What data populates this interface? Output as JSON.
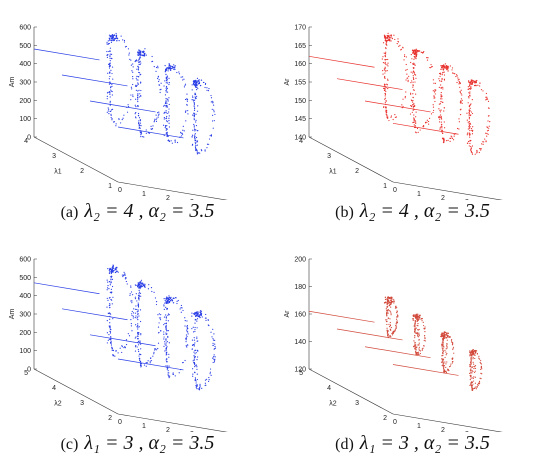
{
  "chart_data": [
    {
      "type": "scatter",
      "label": "(a)",
      "caption": "λ2 = 4 , α2 = 3.5",
      "zlabel": "Am",
      "xlabel": "α1",
      "ylabel": "λ1",
      "zticks": [
        "0",
        "100",
        "200",
        "300",
        "400",
        "500",
        "600"
      ],
      "zlim": [
        0,
        600
      ],
      "xticks": [
        "0",
        "1",
        "2",
        "3",
        "4",
        "5"
      ],
      "xlim": [
        0,
        5
      ],
      "yticks": [
        "1",
        "2",
        "3",
        "4"
      ],
      "ylim": [
        1,
        4
      ],
      "color": "#2a3ee6",
      "series": [
        {
          "y": 4,
          "x": [
            0,
            3.5
          ],
          "value": 480,
          "spread": [
            180,
            600
          ]
        },
        {
          "y": 3,
          "x": [
            0,
            3.5
          ],
          "value": 420,
          "spread": [
            200,
            600
          ]
        },
        {
          "y": 2,
          "x": [
            0,
            3.5
          ],
          "value": 360,
          "spread": [
            230,
            600
          ]
        },
        {
          "y": 1,
          "x": [
            0,
            3.5
          ],
          "value": 300,
          "spread": [
            260,
            600
          ]
        }
      ]
    },
    {
      "type": "scatter",
      "label": "(b)",
      "caption": "λ2 = 4 , α2 = 3.5",
      "zlabel": "Ar",
      "xlabel": "α1",
      "ylabel": "λ1",
      "zticks": [
        "140",
        "145",
        "150",
        "155",
        "160",
        "165",
        "170"
      ],
      "zlim": [
        140,
        170
      ],
      "xticks": [
        "0",
        "1",
        "2",
        "3",
        "4",
        "5"
      ],
      "xlim": [
        0,
        5
      ],
      "yticks": [
        "1",
        "2",
        "3",
        "4"
      ],
      "ylim": [
        1,
        4
      ],
      "color": "#e8322e",
      "series": [
        {
          "y": 4,
          "x": [
            0,
            3.5
          ],
          "value": 162,
          "spread": [
            150,
            170
          ]
        },
        {
          "y": 3,
          "x": [
            0,
            3.5
          ],
          "value": 160,
          "spread": [
            151,
            170
          ]
        },
        {
          "y": 2,
          "x": [
            0,
            3.5
          ],
          "value": 158,
          "spread": [
            152,
            170
          ]
        },
        {
          "y": 1,
          "x": [
            0,
            3.5
          ],
          "value": 156,
          "spread": [
            153,
            170
          ]
        }
      ]
    },
    {
      "type": "scatter",
      "label": "(c)",
      "caption": "λ1 = 3 , α2 = 3.5",
      "zlabel": "Am",
      "xlabel": "α1",
      "ylabel": "λ2",
      "zticks": [
        "0",
        "100",
        "200",
        "300",
        "400",
        "500",
        "600"
      ],
      "zlim": [
        0,
        600
      ],
      "xticks": [
        "0",
        "1",
        "2",
        "3",
        "4",
        "5"
      ],
      "xlim": [
        0,
        5
      ],
      "yticks": [
        "2",
        "3",
        "4",
        "5"
      ],
      "ylim": [
        2,
        5
      ],
      "color": "#2a3ee6",
      "series": [
        {
          "y": 5,
          "x": [
            0,
            3.5
          ],
          "value": 470,
          "spread": [
            190,
            600
          ]
        },
        {
          "y": 4,
          "x": [
            0,
            3.5
          ],
          "value": 410,
          "spread": [
            210,
            600
          ]
        },
        {
          "y": 3,
          "x": [
            0,
            3.5
          ],
          "value": 350,
          "spread": [
            230,
            600
          ]
        },
        {
          "y": 2,
          "x": [
            0,
            3.5
          ],
          "value": 300,
          "spread": [
            250,
            600
          ]
        }
      ]
    },
    {
      "type": "scatter",
      "label": "(d)",
      "caption": "λ1 = 3 , α2 = 3.5",
      "zlabel": "Ar",
      "xlabel": "α1",
      "ylabel": "λ2",
      "zticks": [
        "120",
        "140",
        "160",
        "180",
        "200"
      ],
      "zlim": [
        120,
        200
      ],
      "xticks": [
        "0",
        "1",
        "2",
        "3",
        "4",
        "5"
      ],
      "xlim": [
        0,
        5
      ],
      "yticks": [
        "2",
        "3",
        "4",
        "5"
      ],
      "ylim": [
        2,
        5
      ],
      "color": "#d24a3c",
      "series": [
        {
          "y": 5,
          "x": [
            0,
            3.5
          ],
          "value": 162,
          "spread": [
            158,
            178
          ]
        },
        {
          "y": 4,
          "x": [
            0,
            3.5
          ],
          "value": 160,
          "spread": [
            156,
            176
          ]
        },
        {
          "y": 3,
          "x": [
            0,
            3.5
          ],
          "value": 158,
          "spread": [
            154,
            174
          ]
        },
        {
          "y": 2,
          "x": [
            0,
            3.5
          ],
          "value": 156,
          "spread": [
            152,
            172
          ]
        }
      ]
    }
  ],
  "captions": [
    {
      "letter": "(a)",
      "eq": "λ₂ = 4 , α₂ = 3.5"
    },
    {
      "letter": "(b)",
      "eq": "λ₂ = 4 , α₂ = 3.5"
    },
    {
      "letter": "(c)",
      "eq": "λ₁ = 3 , α₂ = 3.5"
    },
    {
      "letter": "(d)",
      "eq": "λ₁ = 3 , α₂ = 3.5"
    }
  ]
}
